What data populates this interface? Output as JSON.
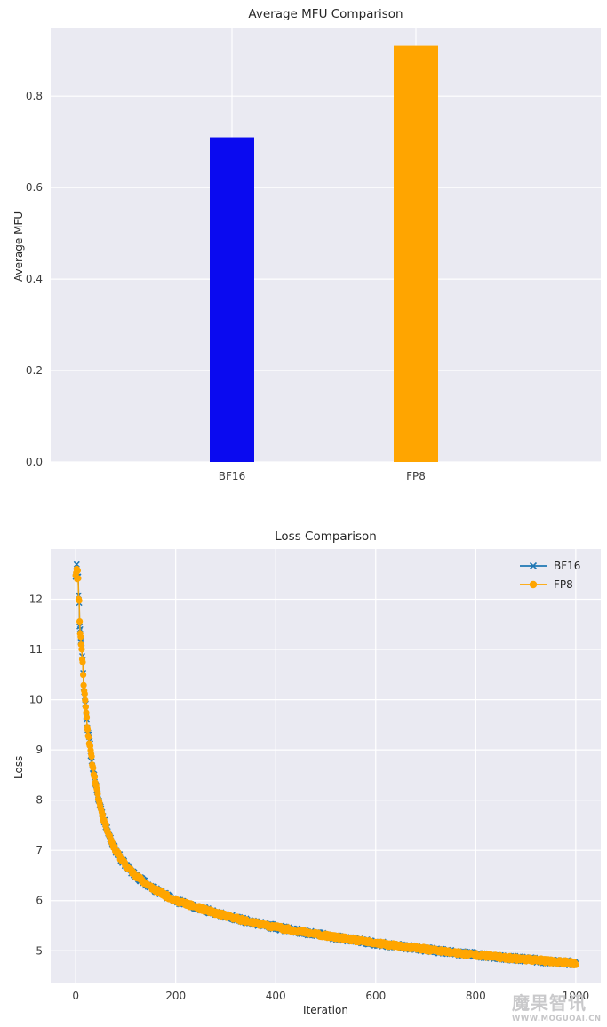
{
  "page": {
    "background": "#ffffff",
    "plot_background": "#eaeaf2",
    "grid_color": "#ffffff",
    "text_color": "#262626",
    "tick_color": "#3c3c3c"
  },
  "watermark": {
    "brand": "魔果智讯",
    "url": "WWW.MOGUOAI.CN"
  },
  "chart_data": [
    {
      "type": "bar",
      "title": "Average MFU Comparison",
      "ylabel": "Average MFU",
      "categories": [
        "BF16",
        "FP8"
      ],
      "values": [
        0.71,
        0.91
      ],
      "bar_colors": [
        "#0a0af0",
        "#ffa500"
      ],
      "yticks": [
        "0.0",
        "0.2",
        "0.4",
        "0.6",
        "0.8"
      ],
      "ylim": [
        0,
        0.95
      ],
      "grid": true,
      "legend_position": "none"
    },
    {
      "type": "line",
      "title": "Loss Comparison",
      "xlabel": "Iteration",
      "ylabel": "Loss",
      "xlim": [
        -50,
        1050
      ],
      "ylim": [
        4.35,
        13.0
      ],
      "xticks": [
        0,
        200,
        400,
        600,
        800,
        1000
      ],
      "yticks": [
        5,
        6,
        7,
        8,
        9,
        10,
        11,
        12
      ],
      "grid": true,
      "legend_position": "upper right",
      "series": [
        {
          "name": "BF16",
          "color": "#1f77b4",
          "marker": "x",
          "keypoints": [
            [
              0,
              12.5
            ],
            [
              1,
              12.55
            ],
            [
              2,
              12.62
            ],
            [
              3,
              12.45
            ],
            [
              4,
              12.55
            ],
            [
              5,
              12.38
            ],
            [
              6,
              12.05
            ],
            [
              7,
              11.95
            ],
            [
              8,
              11.55
            ],
            [
              9,
              11.35
            ],
            [
              10,
              11.22
            ],
            [
              11,
              11.12
            ],
            [
              12,
              11.02
            ],
            [
              13,
              10.82
            ],
            [
              14,
              10.75
            ],
            [
              15,
              10.45
            ],
            [
              16,
              10.3
            ],
            [
              17,
              10.18
            ],
            [
              18,
              10.1
            ],
            [
              19,
              9.95
            ],
            [
              20,
              9.9
            ],
            [
              21,
              9.72
            ],
            [
              22,
              9.62
            ],
            [
              23,
              9.45
            ],
            [
              24,
              9.42
            ],
            [
              25,
              9.32
            ],
            [
              28,
              9.1
            ],
            [
              32,
              8.82
            ],
            [
              36,
              8.55
            ],
            [
              40,
              8.32
            ],
            [
              45,
              8.05
            ],
            [
              50,
              7.85
            ],
            [
              55,
              7.65
            ],
            [
              60,
              7.5
            ],
            [
              65,
              7.36
            ],
            [
              70,
              7.22
            ],
            [
              75,
              7.1
            ],
            [
              80,
              7.0
            ],
            [
              90,
              6.84
            ],
            [
              100,
              6.7
            ],
            [
              110,
              6.6
            ],
            [
              120,
              6.5
            ],
            [
              140,
              6.34
            ],
            [
              160,
              6.21
            ],
            [
              180,
              6.1
            ],
            [
              200,
              6.0
            ],
            [
              220,
              5.94
            ],
            [
              240,
              5.87
            ],
            [
              260,
              5.81
            ],
            [
              280,
              5.75
            ],
            [
              300,
              5.7
            ],
            [
              330,
              5.62
            ],
            [
              360,
              5.55
            ],
            [
              400,
              5.47
            ],
            [
              440,
              5.4
            ],
            [
              480,
              5.33
            ],
            [
              520,
              5.27
            ],
            [
              560,
              5.21
            ],
            [
              600,
              5.15
            ],
            [
              650,
              5.09
            ],
            [
              700,
              5.03
            ],
            [
              750,
              4.97
            ],
            [
              800,
              4.92
            ],
            [
              850,
              4.87
            ],
            [
              900,
              4.83
            ],
            [
              950,
              4.79
            ],
            [
              1000,
              4.75
            ]
          ]
        },
        {
          "name": "FP8",
          "color": "#ffa500",
          "marker": "o",
          "keypoints": [
            [
              0,
              12.5
            ],
            [
              1,
              12.55
            ],
            [
              2,
              12.62
            ],
            [
              3,
              12.45
            ],
            [
              4,
              12.55
            ],
            [
              5,
              12.38
            ],
            [
              6,
              12.05
            ],
            [
              7,
              11.95
            ],
            [
              8,
              11.6
            ],
            [
              9,
              11.35
            ],
            [
              10,
              11.22
            ],
            [
              11,
              11.12
            ],
            [
              12,
              11.02
            ],
            [
              13,
              10.82
            ],
            [
              14,
              10.75
            ],
            [
              15,
              10.48
            ],
            [
              16,
              10.3
            ],
            [
              17,
              10.18
            ],
            [
              18,
              10.1
            ],
            [
              19,
              10.0
            ],
            [
              20,
              9.9
            ],
            [
              21,
              9.72
            ],
            [
              22,
              9.62
            ],
            [
              23,
              9.5
            ],
            [
              24,
              9.42
            ],
            [
              25,
              9.32
            ],
            [
              28,
              9.1
            ],
            [
              32,
              8.82
            ],
            [
              36,
              8.55
            ],
            [
              40,
              8.32
            ],
            [
              45,
              8.05
            ],
            [
              50,
              7.85
            ],
            [
              55,
              7.65
            ],
            [
              60,
              7.5
            ],
            [
              65,
              7.36
            ],
            [
              70,
              7.22
            ],
            [
              75,
              7.1
            ],
            [
              80,
              7.0
            ],
            [
              90,
              6.84
            ],
            [
              100,
              6.7
            ],
            [
              110,
              6.6
            ],
            [
              120,
              6.5
            ],
            [
              140,
              6.34
            ],
            [
              160,
              6.21
            ],
            [
              180,
              6.1
            ],
            [
              200,
              6.0
            ],
            [
              220,
              5.94
            ],
            [
              240,
              5.87
            ],
            [
              260,
              5.81
            ],
            [
              280,
              5.75
            ],
            [
              300,
              5.7
            ],
            [
              330,
              5.62
            ],
            [
              360,
              5.55
            ],
            [
              400,
              5.47
            ],
            [
              440,
              5.4
            ],
            [
              480,
              5.33
            ],
            [
              520,
              5.27
            ],
            [
              560,
              5.21
            ],
            [
              600,
              5.15
            ],
            [
              650,
              5.09
            ],
            [
              700,
              5.03
            ],
            [
              750,
              4.97
            ],
            [
              800,
              4.92
            ],
            [
              850,
              4.87
            ],
            [
              900,
              4.83
            ],
            [
              950,
              4.79
            ],
            [
              1000,
              4.75
            ]
          ]
        }
      ],
      "x_range": [
        0,
        1000
      ],
      "x_step": 1
    }
  ]
}
